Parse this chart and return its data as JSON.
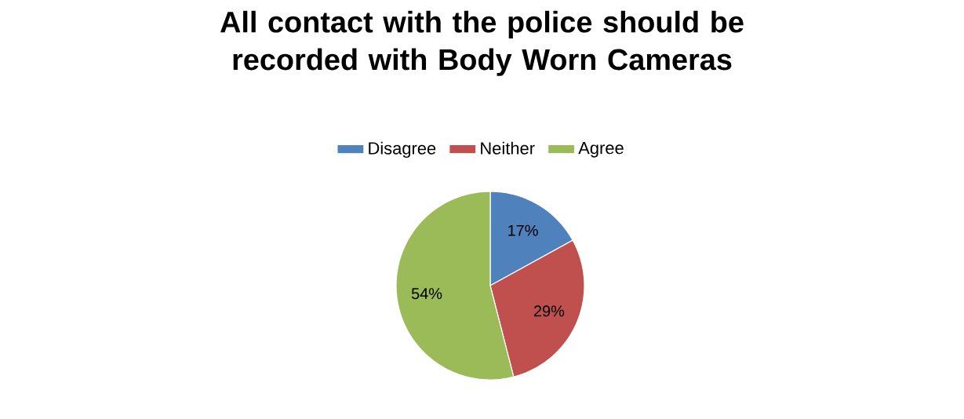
{
  "chart_data": {
    "type": "pie",
    "title": "All contact with the police should be recorded with Body Worn Cameras",
    "categories": [
      "Disagree",
      "Neither",
      "Agree"
    ],
    "values": [
      17,
      29,
      54
    ],
    "colors": [
      "#4f81bd",
      "#c0504d",
      "#9bbb59"
    ],
    "value_labels": [
      "17%",
      "29%",
      "54%"
    ],
    "legend": "top"
  }
}
